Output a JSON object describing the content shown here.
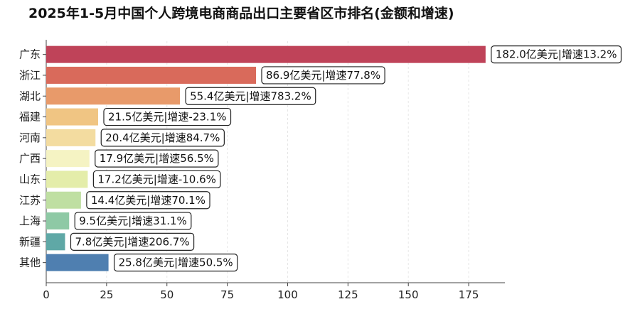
{
  "chart_data": {
    "type": "bar",
    "orientation": "horizontal",
    "title": "2025年1-5月中国个人跨境电商商品出口主要省区市排名(金额和增速)",
    "categories": [
      "广东",
      "浙江",
      "湖北",
      "福建",
      "河南",
      "广西",
      "山东",
      "江苏",
      "上海",
      "新疆",
      "其他"
    ],
    "values": [
      182.0,
      86.9,
      55.4,
      21.5,
      20.4,
      17.9,
      17.2,
      14.4,
      9.5,
      7.8,
      25.8
    ],
    "data_labels": [
      "182.0亿美元|增速13.2%",
      "86.9亿美元|增速77.8%",
      "55.4亿美元|增速783.2%",
      "21.5亿美元|增速-23.1%",
      "20.4亿美元|增速84.7%",
      "17.9亿美元|增速56.5%",
      "17.2亿美元|增速-10.6%",
      "14.4亿美元|增速70.1%",
      "9.5亿美元|增速31.1%",
      "7.8亿美元|增速206.7%",
      "25.8亿美元|增速50.5%"
    ],
    "colors": [
      "#bf4359",
      "#d96a5b",
      "#e89a6a",
      "#f0c583",
      "#f3dca0",
      "#f5f3c3",
      "#e4edaa",
      "#bfdfa2",
      "#8ec9a5",
      "#5fa8a6",
      "#4f7fb0"
    ],
    "xlim": [
      0,
      190
    ],
    "xticks": [
      0,
      25,
      50,
      75,
      100,
      125,
      150,
      175
    ],
    "xlabel": "",
    "ylabel": "",
    "grid": "x-axis dashed, light",
    "legend": "none"
  }
}
